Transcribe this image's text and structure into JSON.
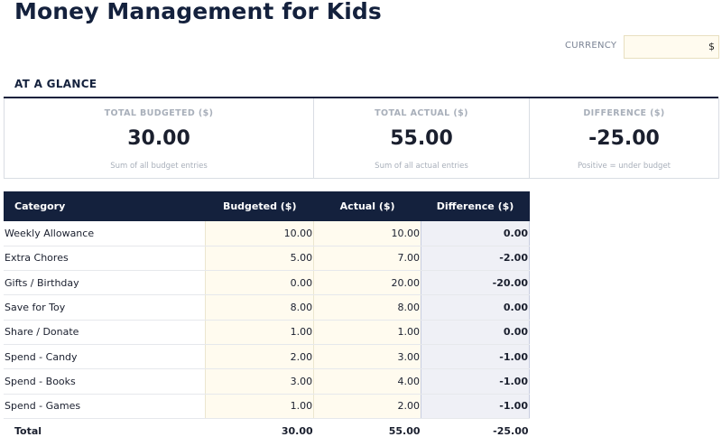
{
  "title": "Money Management for Kids",
  "currency": {
    "label": "CURRENCY",
    "value": "$"
  },
  "glance": {
    "heading": "AT A GLANCE",
    "kpis": [
      {
        "label": "TOTAL BUDGETED ($)",
        "value": "30.00",
        "note": "Sum of all budget entries"
      },
      {
        "label": "TOTAL ACTUAL ($)",
        "value": "55.00",
        "note": "Sum of all actual entries"
      },
      {
        "label": "DIFFERENCE ($)",
        "value": "-25.00",
        "note": "Positive = under budget"
      }
    ]
  },
  "table": {
    "headers": [
      "Category",
      "Budgeted ($)",
      "Actual ($)",
      "Difference ($)"
    ],
    "rows": [
      {
        "category": "Weekly Allowance",
        "budgeted": "10.00",
        "actual": "10.00",
        "difference": "0.00"
      },
      {
        "category": "Extra Chores",
        "budgeted": "5.00",
        "actual": "7.00",
        "difference": "-2.00"
      },
      {
        "category": "Gifts / Birthday",
        "budgeted": "0.00",
        "actual": "20.00",
        "difference": "-20.00"
      },
      {
        "category": "Save for Toy",
        "budgeted": "8.00",
        "actual": "8.00",
        "difference": "0.00"
      },
      {
        "category": "Share / Donate",
        "budgeted": "1.00",
        "actual": "1.00",
        "difference": "0.00"
      },
      {
        "category": "Spend - Candy",
        "budgeted": "2.00",
        "actual": "3.00",
        "difference": "-1.00"
      },
      {
        "category": "Spend - Books",
        "budgeted": "3.00",
        "actual": "4.00",
        "difference": "-1.00"
      },
      {
        "category": "Spend - Games",
        "budgeted": "1.00",
        "actual": "2.00",
        "difference": "-1.00"
      }
    ],
    "total": {
      "label": "Total",
      "budgeted": "30.00",
      "actual": "55.00",
      "difference": "-25.00"
    }
  },
  "colors": {
    "navy": "#14213d",
    "input_fill": "#fffbef",
    "difference_fill": "#eff0f6"
  }
}
